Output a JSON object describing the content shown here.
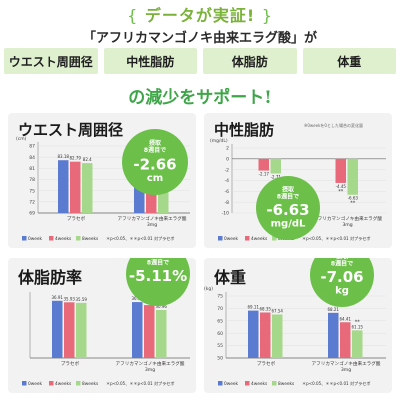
{
  "header": {
    "title": "データが実証!",
    "subtitle": "「アフリカマンゴノキ由来エラグ酸」が",
    "tagline": "の減少をサポート!",
    "brace_left": "{",
    "brace_right": "}"
  },
  "tabs": [
    "ウエスト周囲径",
    "中性脂肪",
    "体脂肪",
    "体重"
  ],
  "legend": [
    "0week",
    "4weeks",
    "8weeks"
  ],
  "significance": "＊p<0.05、＊＊p<0.01 対プラセボ",
  "colors": {
    "green": "#6cc04a",
    "bar_blue": "#5b7bd0",
    "bar_red": "#e8697a",
    "bar_green": "#a5d88a",
    "bubble_text": "#ffffff",
    "panel_bg": "#f2f2f2",
    "tab_bg": "#dff0cf"
  },
  "chart_data": [
    {
      "type": "bar",
      "title": "ウエスト周囲径",
      "unit": "(cm)",
      "categories": [
        "プラセボ",
        "アフリカマンゴノキ由来エラグ酸 3mg"
      ],
      "series": [
        {
          "name": "0week",
          "values": [
            83.18,
            80.4
          ]
        },
        {
          "name": "4weeks",
          "values": [
            82.79,
            78.67
          ]
        },
        {
          "name": "8weeks",
          "values": [
            82.4,
            77.74
          ]
        }
      ],
      "value_labels": [
        [
          "83.18",
          "82.79",
          "82.4"
        ],
        [
          "80.4",
          "78.67",
          "77.74"
        ]
      ],
      "stars": [
        [
          "",
          "",
          ""
        ],
        [
          "",
          "*",
          "**"
        ]
      ],
      "ylim": [
        69,
        87
      ],
      "yticks": [
        69,
        72,
        75,
        78,
        81,
        84,
        87
      ],
      "bubble": {
        "top": "摂取\n8週目で",
        "value": "-2.66",
        "unit": "cm"
      }
    },
    {
      "type": "bar",
      "title": "中性脂肪",
      "unit": "(mg/dL)",
      "note": "※0weekを0とした場合の変化量",
      "categories": [
        "プラセボ",
        "アフリカマンゴノキ由来エラグ酸 3mg"
      ],
      "series": [
        {
          "name": "4weeks",
          "values": [
            -2.17,
            -4.45
          ]
        },
        {
          "name": "8weeks",
          "values": [
            -2.71,
            -6.63
          ]
        }
      ],
      "value_labels": [
        [
          "-2.17",
          "-2.71"
        ],
        [
          "-4.45",
          "-6.63"
        ]
      ],
      "stars": [
        [
          "",
          ""
        ],
        [
          "**",
          "**"
        ]
      ],
      "ylim": [
        -10,
        2
      ],
      "yticks": [
        2,
        0,
        -2,
        -4,
        -6,
        -8,
        -10
      ],
      "bubble": {
        "top": "摂取\n8週目で",
        "value": "-6.63",
        "unit": "mg/dL"
      }
    },
    {
      "type": "bar",
      "title": "体脂肪率",
      "unit": "",
      "categories": [
        "プラセボ",
        "アフリカマンゴノキ由来エラグ酸 3mg"
      ],
      "series": [
        {
          "name": "0week",
          "values": [
            36.91,
            36.07
          ]
        },
        {
          "name": "4weeks",
          "values": [
            35.93,
            34.13
          ]
        },
        {
          "name": "8weeks",
          "values": [
            35.59,
            30.96
          ]
        }
      ],
      "value_labels": [
        [
          "36.91",
          "35.93",
          "35.59"
        ],
        [
          "36.07",
          "34.13",
          "30.96"
        ]
      ],
      "stars": [
        [
          "",
          "",
          ""
        ],
        [
          "",
          "*",
          "**"
        ]
      ],
      "ylim": [
        0,
        40
      ],
      "yticks": [],
      "bubble": {
        "top": "摂取\n8週目で",
        "value": "-5.11%",
        "unit": ""
      }
    },
    {
      "type": "bar",
      "title": "体重",
      "unit": "(kg)",
      "categories": [
        "プラセボ",
        "アフリカマンゴノキ由来エラグ酸 3mg"
      ],
      "series": [
        {
          "name": "0week",
          "values": [
            69.11,
            68.21
          ]
        },
        {
          "name": "4weeks",
          "values": [
            68.35,
            64.41
          ]
        },
        {
          "name": "8weeks",
          "values": [
            67.54,
            61.15
          ]
        }
      ],
      "value_labels": [
        [
          "69.11",
          "68.35",
          "67.54"
        ],
        [
          "68.21",
          "64.41",
          "61.15"
        ]
      ],
      "stars": [
        [
          "",
          "",
          ""
        ],
        [
          "",
          "",
          "**"
        ]
      ],
      "ylim": [
        50,
        75
      ],
      "yticks": [
        75,
        70,
        65,
        60,
        55,
        50
      ],
      "bubble": {
        "top": "摂取\n8週目で",
        "value": "-7.06",
        "unit": "kg"
      }
    }
  ]
}
